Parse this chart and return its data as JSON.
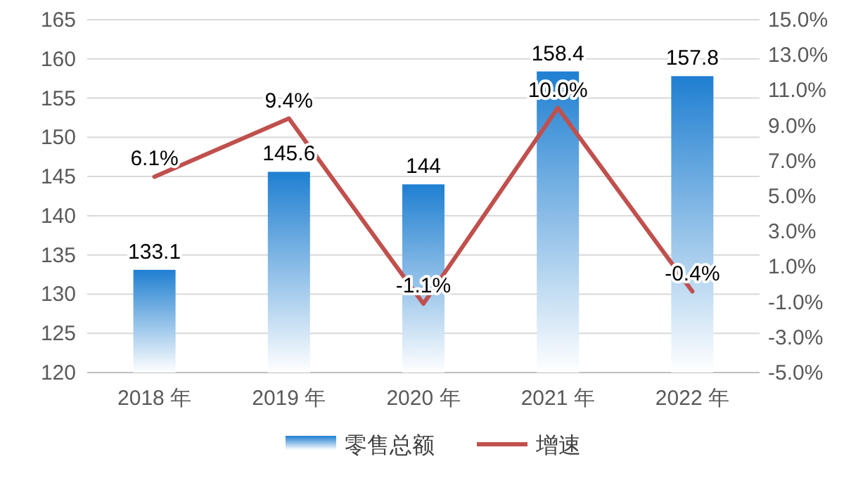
{
  "chart_data": {
    "type": "bar",
    "categories": [
      "2018 年",
      "2019 年",
      "2020 年",
      "2021 年",
      "2022 年"
    ],
    "series": [
      {
        "name": "零售总额",
        "color": "#1f7fd1",
        "values": [
          133.1,
          145.6,
          144,
          158.4,
          157.8
        ],
        "value_labels": [
          "133.1",
          "145.6",
          "144",
          "158.4",
          "157.8"
        ]
      },
      {
        "name": "增速",
        "type": "line",
        "axis": "y2",
        "color": "#c0504d",
        "values": [
          6.1,
          9.4,
          -1.1,
          10.0,
          -0.4
        ],
        "value_labels": [
          "6.1%",
          "9.4%",
          "-1.1%",
          "10.0%",
          "-0.4%"
        ]
      }
    ],
    "ylim": [
      120,
      165
    ],
    "yticks": [
      120,
      125,
      130,
      135,
      140,
      145,
      150,
      155,
      160,
      165
    ],
    "y2lim": [
      -5,
      15
    ],
    "y2ticks": [
      {
        "value": -5,
        "label": "-5.0%"
      },
      {
        "value": -3,
        "label": "-3.0%"
      },
      {
        "value": -1,
        "label": "-1.0%"
      },
      {
        "value": 1,
        "label": "1.0%"
      },
      {
        "value": 3,
        "label": "3.0%"
      },
      {
        "value": 5,
        "label": "5.0%"
      },
      {
        "value": 7,
        "label": "7.0%"
      },
      {
        "value": 9,
        "label": "9.0%"
      },
      {
        "value": 11,
        "label": "11.0%"
      },
      {
        "value": 13,
        "label": "13.0%"
      },
      {
        "value": 15,
        "label": "15.0%"
      }
    ],
    "grid": "y",
    "legend": "bottom",
    "marker": "none",
    "line_style": "solid"
  }
}
